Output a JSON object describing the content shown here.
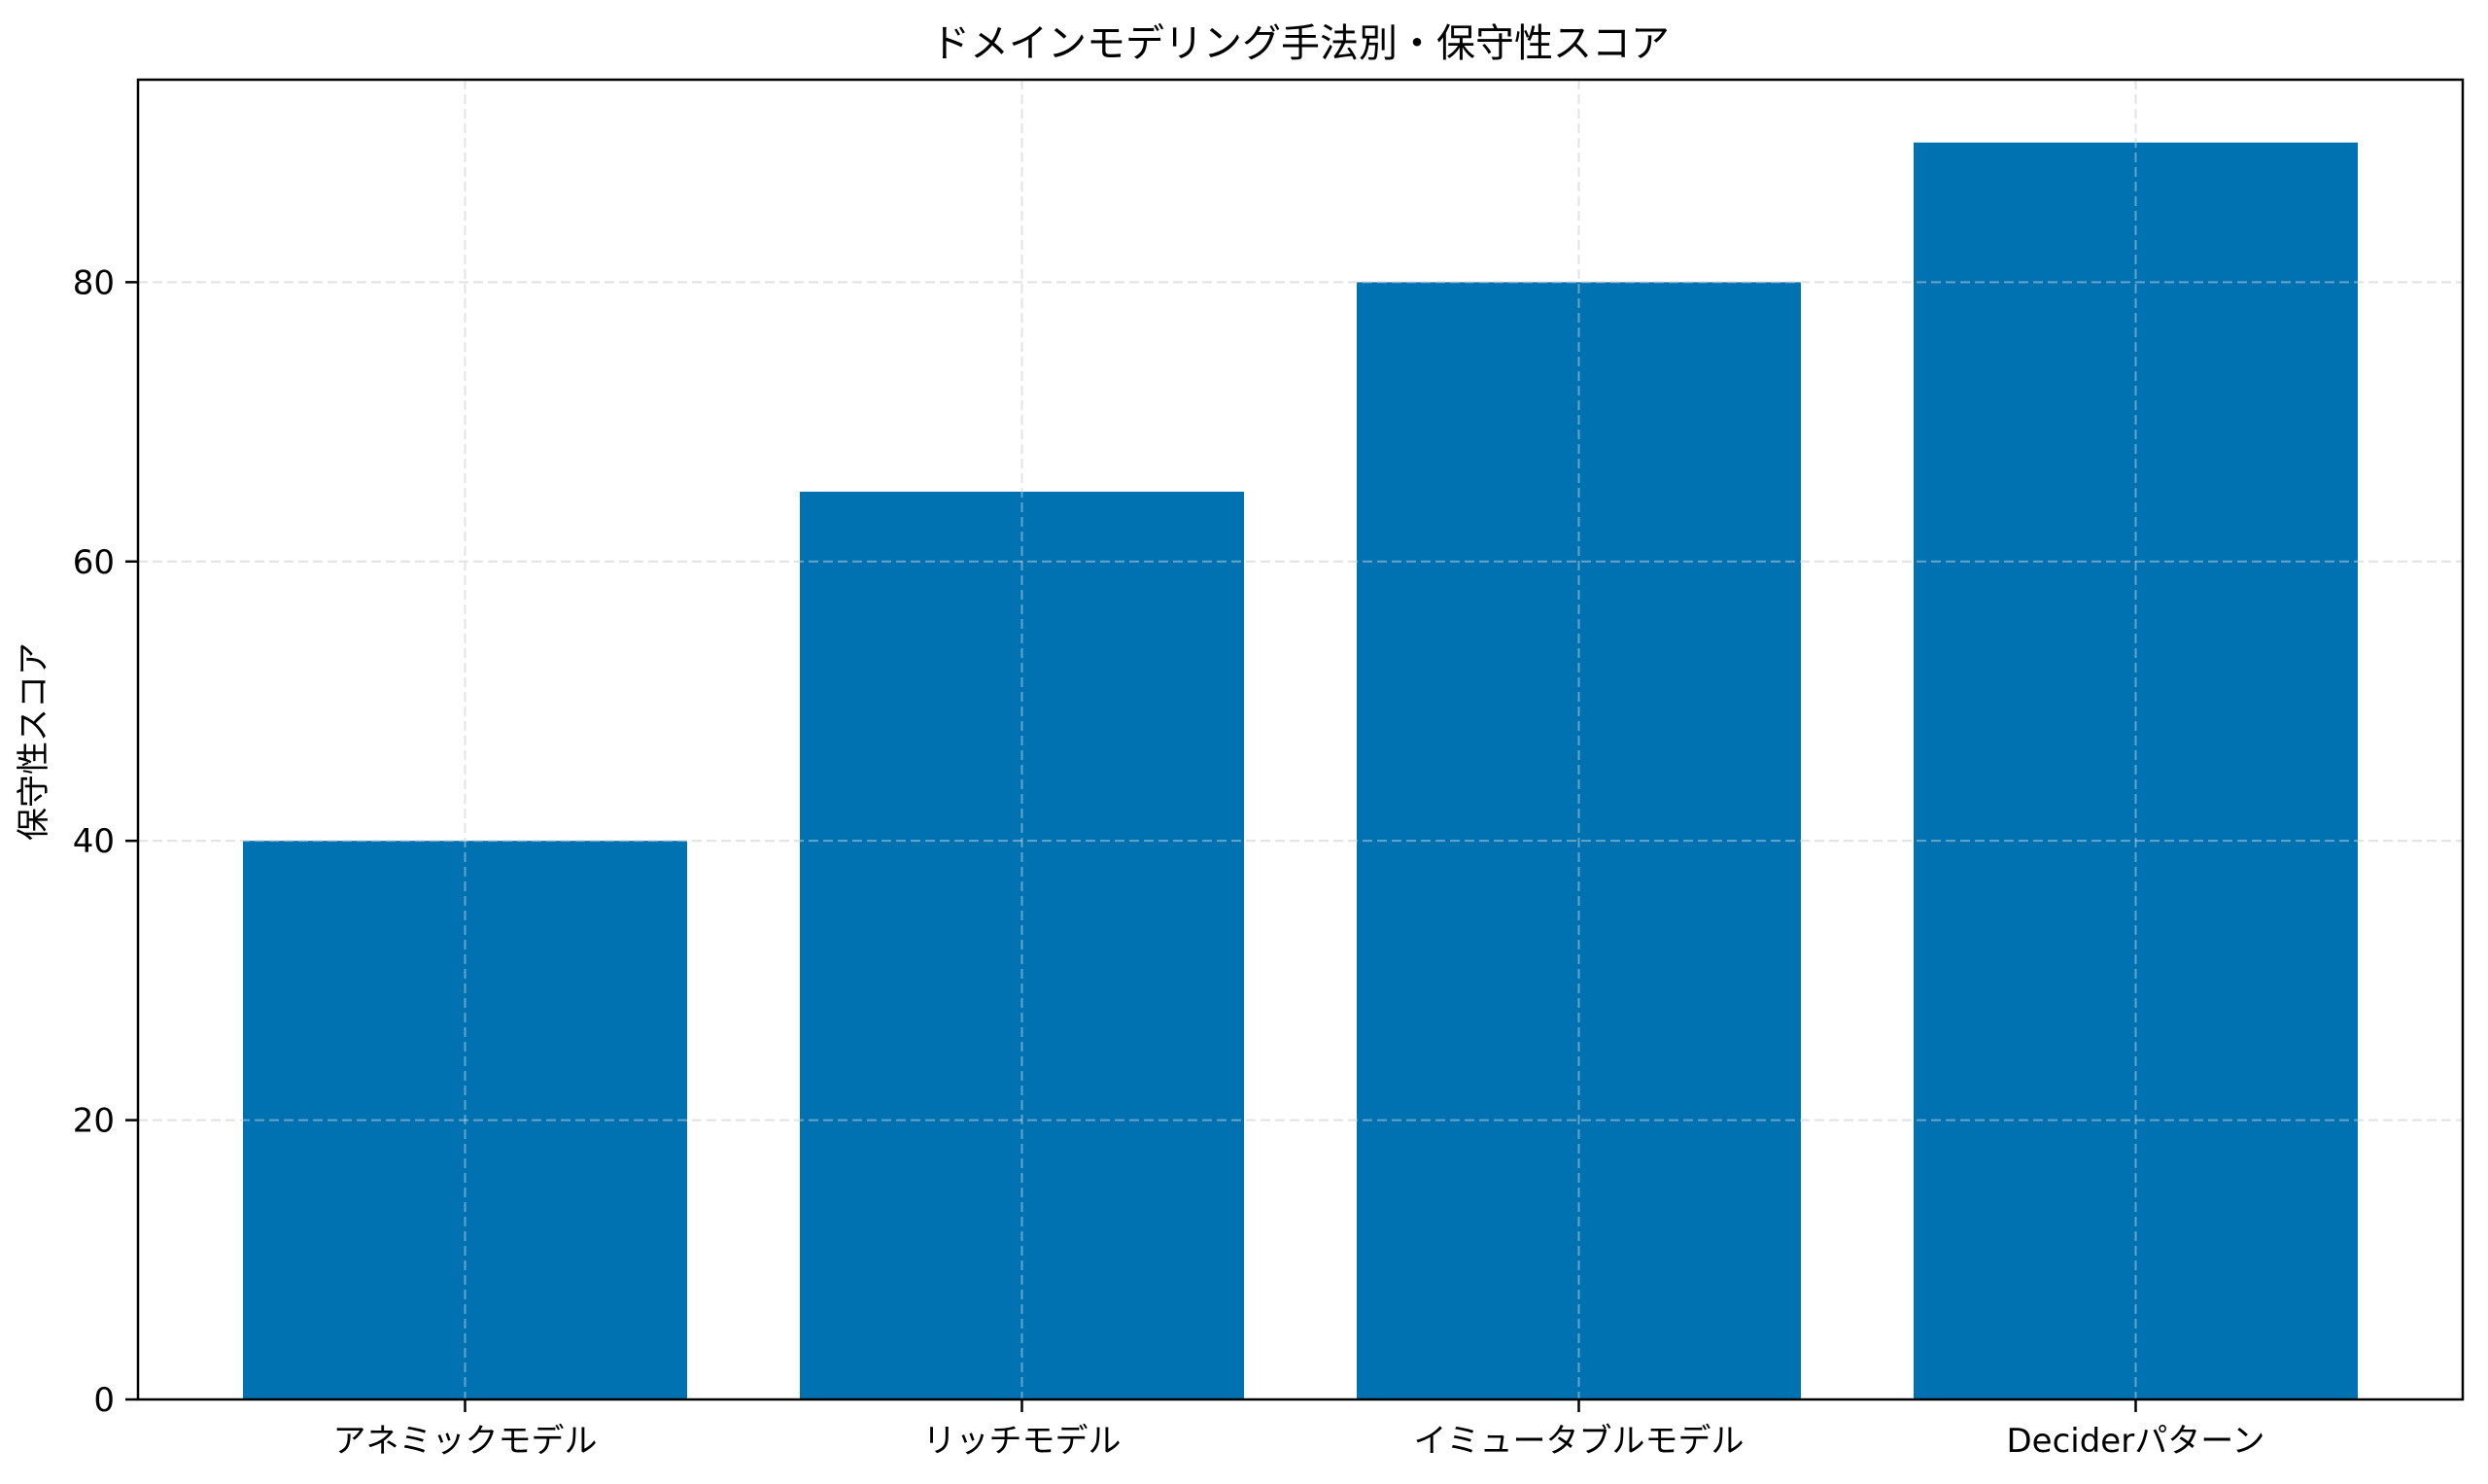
{
  "chart_data": {
    "type": "bar",
    "title": "ドメインモデリング手法別・保守性スコア",
    "xlabel": "",
    "ylabel": "保守性スコア",
    "categories": [
      "アネミックモデル",
      "リッチモデル",
      "イミュータブルモデル",
      "Deciderパターン"
    ],
    "values": [
      40,
      65,
      80,
      90
    ],
    "ylim": [
      0,
      94.5
    ],
    "yticks": [
      0,
      20,
      40,
      60,
      80
    ],
    "grid": true,
    "grid_style": "dashed",
    "legend": null,
    "bar_color": "#0072B2"
  }
}
